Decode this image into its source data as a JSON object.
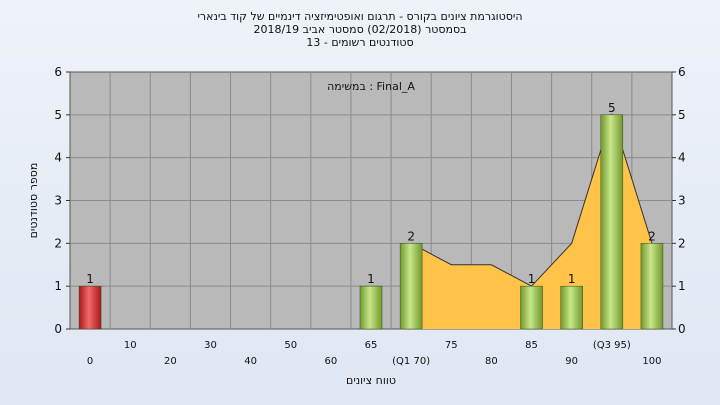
{
  "titles": {
    "line1": "היסטוגרמת ציונים בקורס - תרגום ואופטימיזציה דינמיים של קוד בינארי",
    "line2": "בסמסטר  (02/2018)  סמסטר אביב 2018/19",
    "line3": "סטודנטים רשומים - 13"
  },
  "colors": {
    "plot_bg": "#b9b9b9",
    "area": "#ffc34a",
    "bar_green": "#92c050",
    "bar_red": "#e03030",
    "grid": "#8a8a8a"
  },
  "chart_data": {
    "type": "bar",
    "annotation": "במשימה : Final_A",
    "ylabel": "מספר סטודנטים",
    "xlabel": "טווח ציונים",
    "ylim": [
      0,
      6
    ],
    "y_ticks": [
      "0",
      "1",
      "2",
      "3",
      "4",
      "5",
      "6"
    ],
    "categories": [
      "0",
      "10",
      "20",
      "30",
      "40",
      "50",
      "60",
      "65",
      "(Q1 70)",
      "75",
      "80",
      "85",
      "90",
      "(Q3 95)",
      "100"
    ],
    "values": [
      1,
      0,
      0,
      0,
      0,
      0,
      0,
      1,
      2,
      0,
      0,
      1,
      1,
      5,
      2
    ],
    "bar_colors": [
      "red",
      null,
      null,
      null,
      null,
      null,
      null,
      "green",
      "green",
      null,
      null,
      "green",
      "green",
      "green",
      "green"
    ],
    "value_labels": [
      "1",
      "",
      "",
      "",
      "",
      "",
      "",
      "1",
      "2",
      "",
      "",
      "1",
      "1",
      "5",
      "2"
    ],
    "area_series": [
      {
        "x": "(Q1 70)",
        "y": 2
      },
      {
        "x": "75",
        "y": 1.5
      },
      {
        "x": "80",
        "y": 1.5
      },
      {
        "x": "85",
        "y": 1
      },
      {
        "x": "90",
        "y": 2
      },
      {
        "x": "(Q3 95)",
        "y": 5
      },
      {
        "x": "100",
        "y": 2
      }
    ]
  }
}
